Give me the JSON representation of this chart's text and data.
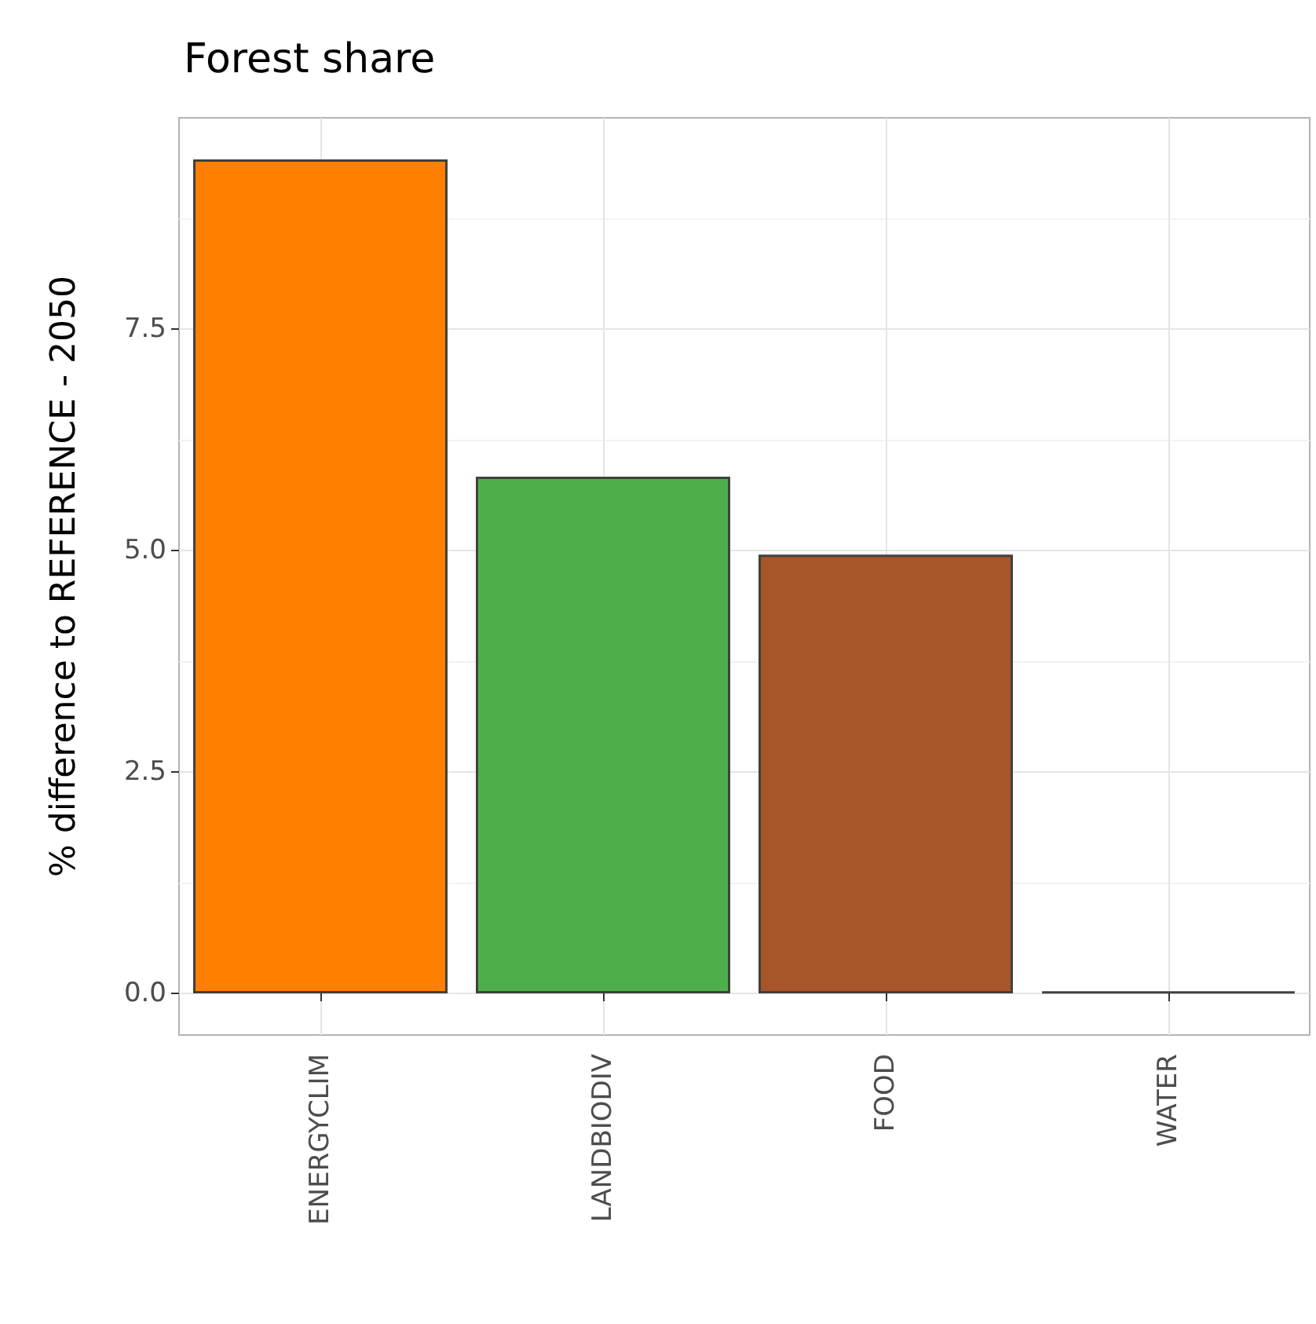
{
  "chart_data": {
    "type": "bar",
    "title": "Forest share",
    "ylabel": "% difference to REFERENCE - 2050",
    "categories": [
      "ENERGYCLIM",
      "LANDBIODIV",
      "FOOD",
      "WATER"
    ],
    "values": [
      9.41,
      5.83,
      4.95,
      0.02
    ],
    "colors": [
      "#ff7f00",
      "#4daf4a",
      "#a65628",
      "#404040"
    ],
    "ylim": [
      -0.47,
      9.88
    ],
    "yticks": [
      {
        "value": 0,
        "label": "0.0"
      },
      {
        "value": 2.5,
        "label": "2.5"
      },
      {
        "value": 5,
        "label": "5.0"
      },
      {
        "value": 7.5,
        "label": "7.5"
      }
    ],
    "grid": true
  }
}
